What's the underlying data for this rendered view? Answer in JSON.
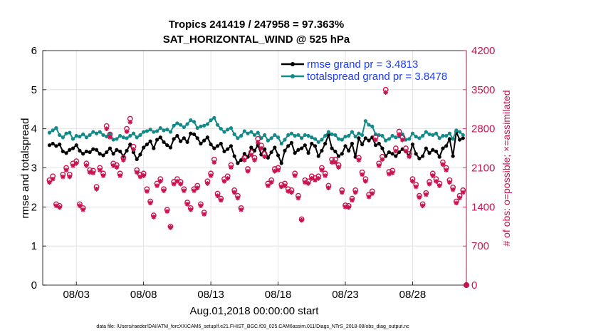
{
  "chart_data": {
    "type": "line",
    "title": "Tropics 241419 / 247958 = 97.363%",
    "subtitle": "SAT_HORIZONTAL_WIND @ 525 hPa",
    "xlabel": "Aug.01,2018 00:00:00 start",
    "ylabel": "rmse and totalspread",
    "ylabel_right": "# of obs: o=possible; ×=assimilated",
    "footer": "data file: /Users/raeder/DAI/ATM_forcXX/CAM6_setup/f.e21.FHIST_BGC.f09_025.CAM6assim.011/Diags_NTrS_2018-08/obs_diag_output.nc",
    "ylim": [
      0,
      6
    ],
    "ylim_right": [
      0,
      4200
    ],
    "xlim": [
      0.5,
      32
    ],
    "x_ticks": [
      3,
      8,
      13,
      18,
      23,
      28
    ],
    "x_tick_labels": [
      "08/03",
      "08/08",
      "08/13",
      "08/18",
      "08/23",
      "08/28"
    ],
    "y_ticks": [
      0,
      1,
      2,
      3,
      4,
      5,
      6
    ],
    "y_tick_labels": [
      "0",
      "1",
      "2",
      "3",
      "4",
      "5",
      "6"
    ],
    "y_right_ticks": [
      0,
      700,
      1400,
      2100,
      2800,
      3500,
      4200
    ],
    "y_right_tick_labels": [
      "0",
      "700",
      "1400",
      "2100",
      "2800",
      "3500",
      "4200"
    ],
    "grid": true,
    "legend_position": "top-right",
    "x": [
      1.0,
      1.25,
      1.5,
      1.75,
      2.0,
      2.25,
      2.5,
      2.75,
      3.0,
      3.25,
      3.5,
      3.75,
      4.0,
      4.25,
      4.5,
      4.75,
      5.0,
      5.25,
      5.5,
      5.75,
      6.0,
      6.25,
      6.5,
      6.75,
      7.0,
      7.25,
      7.5,
      7.75,
      8.0,
      8.25,
      8.5,
      8.75,
      9.0,
      9.25,
      9.5,
      9.75,
      10.0,
      10.25,
      10.5,
      10.75,
      11.0,
      11.25,
      11.5,
      11.75,
      12.0,
      12.25,
      12.5,
      12.75,
      13.0,
      13.25,
      13.5,
      13.75,
      14.0,
      14.25,
      14.5,
      14.75,
      15.0,
      15.25,
      15.5,
      15.75,
      16.0,
      16.25,
      16.5,
      16.75,
      17.0,
      17.25,
      17.5,
      17.75,
      18.0,
      18.25,
      18.5,
      18.75,
      19.0,
      19.25,
      19.5,
      19.75,
      20.0,
      20.25,
      20.5,
      20.75,
      21.0,
      21.25,
      21.5,
      21.75,
      22.0,
      22.25,
      22.5,
      22.75,
      23.0,
      23.25,
      23.5,
      23.75,
      24.0,
      24.25,
      24.5,
      24.75,
      25.0,
      25.25,
      25.5,
      25.75,
      26.0,
      26.25,
      26.5,
      26.75,
      27.0,
      27.25,
      27.5,
      27.75,
      28.0,
      28.25,
      28.5,
      28.75,
      29.0,
      29.25,
      29.5,
      29.75,
      30.0,
      30.25,
      30.5,
      30.75,
      31.0,
      31.25,
      31.5,
      31.75
    ],
    "series": [
      {
        "name": "rmse",
        "legend_label": "rmse grand pr = 3.4813",
        "color": "#000000",
        "axis": "left",
        "values": [
          3.58,
          3.62,
          3.56,
          3.6,
          3.42,
          3.38,
          3.46,
          3.5,
          3.58,
          3.44,
          3.36,
          3.42,
          3.4,
          3.48,
          3.46,
          3.36,
          3.32,
          3.4,
          3.5,
          3.36,
          3.46,
          3.42,
          3.3,
          3.44,
          3.6,
          3.4,
          3.22,
          3.34,
          3.52,
          3.6,
          3.68,
          3.5,
          3.72,
          3.78,
          3.66,
          3.58,
          3.52,
          3.74,
          3.82,
          3.68,
          3.76,
          3.66,
          3.88,
          3.86,
          3.76,
          3.62,
          3.7,
          3.78,
          3.6,
          3.5,
          3.56,
          3.62,
          3.42,
          3.48,
          3.56,
          3.3,
          3.12,
          3.2,
          3.36,
          3.28,
          3.52,
          3.44,
          3.58,
          3.34,
          3.48,
          3.26,
          3.4,
          3.52,
          3.32,
          3.12,
          3.44,
          3.56,
          3.64,
          3.38,
          3.46,
          3.5,
          3.58,
          3.38,
          3.62,
          3.56,
          3.3,
          3.44,
          3.62,
          3.84,
          3.5,
          3.42,
          3.3,
          3.36,
          3.56,
          3.44,
          3.62,
          3.28,
          3.76,
          3.6,
          3.76,
          3.7,
          3.78,
          3.58,
          3.62,
          3.5,
          3.3,
          3.4,
          3.36,
          3.3,
          3.4,
          3.48,
          3.42,
          3.3,
          3.6,
          3.36,
          3.24,
          3.3,
          3.5,
          3.38,
          3.46,
          3.42,
          3.28,
          3.5,
          3.56,
          3.74,
          3.3,
          3.92,
          3.72,
          3.76
        ]
      },
      {
        "name": "totalspread",
        "legend_label": "totalspread grand pr = 3.8478",
        "color": "#138a8a",
        "axis": "left",
        "values": [
          3.9,
          3.96,
          4.02,
          3.84,
          3.78,
          3.88,
          3.9,
          3.74,
          3.82,
          3.8,
          3.86,
          3.78,
          3.84,
          3.92,
          3.88,
          3.92,
          3.84,
          3.8,
          3.86,
          3.72,
          3.74,
          3.82,
          3.78,
          3.76,
          3.82,
          3.88,
          3.78,
          3.84,
          3.92,
          3.94,
          3.98,
          3.92,
          3.94,
          4.02,
          3.96,
          3.98,
          3.92,
          4.08,
          4.14,
          4.1,
          4.04,
          4.12,
          4.22,
          4.18,
          4.02,
          4.06,
          4.08,
          4.12,
          4.22,
          4.28,
          4.1,
          4.0,
          3.92,
          3.98,
          4.02,
          3.86,
          3.76,
          3.82,
          3.94,
          3.88,
          3.92,
          3.84,
          3.9,
          3.76,
          3.84,
          3.7,
          3.76,
          3.84,
          3.78,
          3.62,
          3.72,
          3.84,
          3.88,
          3.82,
          3.84,
          3.76,
          3.84,
          3.82,
          3.78,
          3.74,
          3.66,
          3.72,
          3.82,
          3.92,
          3.86,
          3.84,
          3.74,
          3.72,
          3.8,
          3.82,
          3.92,
          3.8,
          3.88,
          3.84,
          4.2,
          4.1,
          4.06,
          3.86,
          3.84,
          3.82,
          3.7,
          3.74,
          3.82,
          3.78,
          3.8,
          3.86,
          3.72,
          3.74,
          3.88,
          3.8,
          3.76,
          3.82,
          3.92,
          3.86,
          3.84,
          3.88,
          3.76,
          3.82,
          3.82,
          3.88,
          3.74,
          3.96,
          3.92,
          3.84
        ]
      },
      {
        "name": "obs possible",
        "marker": "o",
        "color": "#c8144f",
        "axis": "right",
        "values": [
          1880,
          1950,
          1450,
          1420,
          1980,
          2100,
          1980,
          2180,
          2220,
          1450,
          1380,
          2180,
          2060,
          2050,
          1760,
          2100,
          2000,
          2850,
          2700,
          2180,
          2150,
          2000,
          2280,
          2800,
          2980,
          2480,
          2060,
          1980,
          2000,
          1720,
          1500,
          1250,
          1820,
          1900,
          1720,
          1350,
          1050,
          1850,
          1900,
          1850,
          1720,
          1480,
          1380,
          1720,
          1780,
          1450,
          1300,
          1860,
          2000,
          2250,
          1640,
          1550,
          1900,
          1950,
          2150,
          1700,
          1600,
          1380,
          2280,
          2080,
          2380,
          2280,
          2620,
          2500,
          2350,
          1820,
          1880,
          2080,
          2100,
          1800,
          1820,
          1720,
          1700,
          2000,
          1600,
          1180,
          1880,
          1860,
          1950,
          1920,
          1950,
          2100,
          2000,
          1780,
          2250,
          2250,
          2150,
          1700,
          1430,
          1420,
          1550,
          1700,
          2280,
          2020,
          1900,
          1620,
          1680,
          2650,
          2180,
          2300,
          3500,
          2030,
          2050,
          2450,
          2750,
          2650,
          2450,
          2350,
          1900,
          1800,
          1600,
          1450,
          1650,
          1850,
          2000,
          1900,
          1820,
          2200,
          2100,
          1880,
          1750,
          1500,
          1600,
          1700
        ]
      },
      {
        "name": "obs assimilated",
        "marker": "*",
        "color": "#c8144f",
        "axis": "right",
        "values": [
          1840,
          1900,
          1420,
          1390,
          1940,
          2060,
          1940,
          2140,
          2180,
          1420,
          1350,
          2140,
          2020,
          2010,
          1720,
          2060,
          1960,
          2800,
          2650,
          2140,
          2110,
          1960,
          2240,
          2750,
          2920,
          2430,
          2020,
          1940,
          1960,
          1680,
          1470,
          1220,
          1780,
          1860,
          1690,
          1320,
          1030,
          1810,
          1860,
          1810,
          1690,
          1450,
          1350,
          1690,
          1740,
          1420,
          1270,
          1820,
          1960,
          2200,
          1600,
          1520,
          1860,
          1910,
          2110,
          1660,
          1560,
          1350,
          2240,
          2040,
          2330,
          2240,
          2560,
          2450,
          2300,
          1780,
          1840,
          2040,
          2060,
          1760,
          1780,
          1680,
          1660,
          1960,
          1560,
          1160,
          1840,
          1820,
          1910,
          1880,
          1910,
          2060,
          1960,
          1740,
          2200,
          2200,
          2110,
          1660,
          1400,
          1390,
          1520,
          1660,
          2240,
          1980,
          1860,
          1580,
          1640,
          2600,
          2140,
          2250,
          3450,
          1990,
          2010,
          2400,
          2700,
          2600,
          2400,
          2300,
          1860,
          1760,
          1570,
          1420,
          1620,
          1810,
          1960,
          1860,
          1780,
          2160,
          2060,
          1840,
          1710,
          1470,
          1560,
          1660
        ]
      }
    ],
    "extra_points": [
      {
        "x": 32,
        "value": 0,
        "axis": "right",
        "marker": "o"
      }
    ]
  }
}
